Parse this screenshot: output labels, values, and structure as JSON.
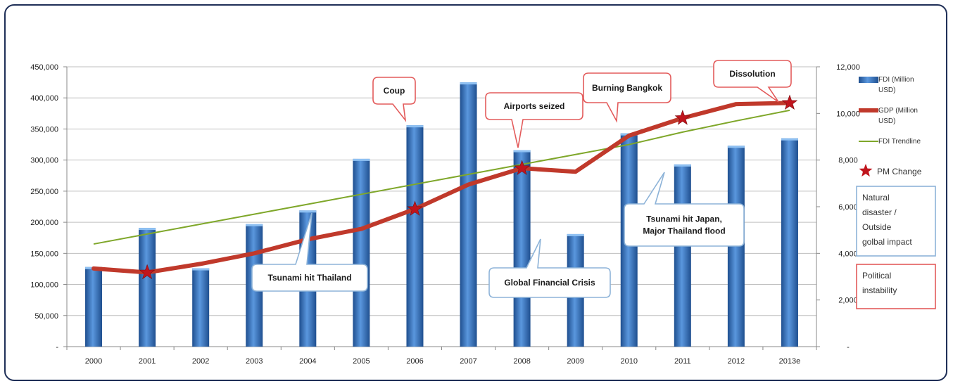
{
  "chart_data": {
    "type": "bar",
    "categories": [
      "2000",
      "2001",
      "2002",
      "2003",
      "2004",
      "2005",
      "2006",
      "2007",
      "2008",
      "2009",
      "2010",
      "2011",
      "2012",
      "2013e"
    ],
    "series": [
      {
        "name": "FDI (Million USD)",
        "type": "bar",
        "axis": "left",
        "values": [
          128000,
          191000,
          126000,
          197000,
          219000,
          302000,
          356000,
          425000,
          316000,
          181000,
          343000,
          293000,
          323000,
          335000
        ]
      },
      {
        "name": "GDP (Million USD)",
        "type": "line",
        "axis": "right",
        "values": [
          3350,
          3180,
          3550,
          4000,
          4600,
          5050,
          5900,
          6950,
          7650,
          7500,
          9050,
          9800,
          10400,
          10450
        ]
      },
      {
        "name": "FDI Trendline",
        "type": "line",
        "axis": "left",
        "values": [
          165000,
          181000,
          197000,
          213000,
          229000,
          245000,
          261000,
          277000,
          293000,
          309000,
          325000,
          345000,
          363000,
          380000
        ]
      }
    ],
    "pm_change": {
      "label": "PM Change",
      "years": [
        "2001",
        "2006",
        "2008",
        "2011",
        "2013e"
      ]
    },
    "left_axis": {
      "min": 0,
      "max": 450000,
      "ticks": [
        "-",
        "50,000",
        "100,000",
        "150,000",
        "200,000",
        "250,000",
        "300,000",
        "350,000",
        "400,000",
        "450,000"
      ]
    },
    "right_axis": {
      "min": 0,
      "max": 12000,
      "ticks": [
        "-",
        "2,000",
        "4,000",
        "6,000",
        "8,000",
        "10,000",
        "12,000"
      ]
    },
    "grid": true,
    "legend_position": "right",
    "legend": [
      {
        "kind": "bar",
        "lines": [
          "FDI (Million",
          "USD)"
        ],
        "color": "#3b79c7"
      },
      {
        "kind": "line",
        "lines": [
          "GDP (Million",
          "USD)"
        ],
        "color": "#c0392b"
      },
      {
        "kind": "trend",
        "lines": [
          "FDI Trendline"
        ],
        "color": "#7fa72a"
      },
      {
        "kind": "star",
        "lines": [
          "PM Change"
        ],
        "color": "#c0151d"
      }
    ],
    "category_boxes": [
      {
        "lines": [
          "Natural",
          "disaster /",
          "Outside",
          "golbal impact"
        ],
        "color": "#8db3d8"
      },
      {
        "lines": [
          "Political",
          "instability"
        ],
        "color": "#e35b5b"
      }
    ],
    "annotations": [
      {
        "text": [
          "Coup"
        ],
        "type": "political",
        "year": "2006"
      },
      {
        "text": [
          "Airports seized"
        ],
        "type": "political",
        "year": "2008"
      },
      {
        "text": [
          "Burning Bangkok"
        ],
        "type": "political",
        "year": "2010"
      },
      {
        "text": [
          "Dissolution"
        ],
        "type": "political",
        "year": "2013e"
      },
      {
        "text": [
          "Tsunami hit Thailand"
        ],
        "type": "natural",
        "year": "2004"
      },
      {
        "text": [
          "Global Financial Crisis"
        ],
        "type": "natural",
        "year": "2008"
      },
      {
        "text": [
          "Tsunami hit Japan,",
          "Major Thailand flood"
        ],
        "type": "natural",
        "year": "2011"
      }
    ],
    "colors": {
      "bar": "#3b79c7",
      "gdp": "#c0392b",
      "trend": "#7fa72a",
      "star": "#c0151d",
      "political": "#e35b5b",
      "natural": "#8db3d8"
    }
  }
}
